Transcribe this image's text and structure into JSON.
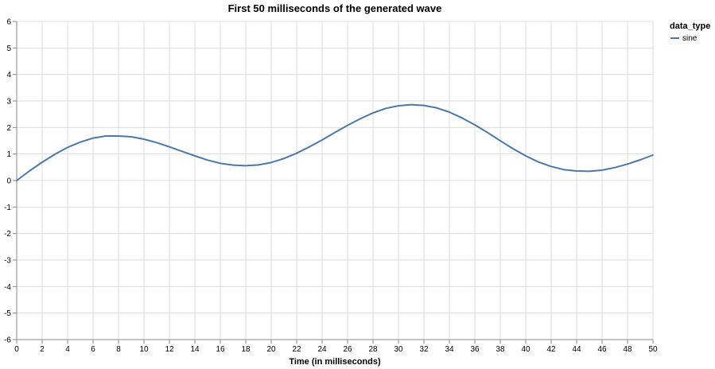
{
  "chart_data": {
    "type": "line",
    "title": "First 50 milliseconds of the generated wave",
    "xlabel": "Time (in milliseconds)",
    "ylabel": "",
    "xlim": [
      0,
      50
    ],
    "ylim": [
      -6,
      6
    ],
    "x_ticks": [
      0,
      2,
      4,
      6,
      8,
      10,
      12,
      14,
      16,
      18,
      20,
      22,
      24,
      26,
      28,
      30,
      32,
      34,
      36,
      38,
      40,
      42,
      44,
      46,
      48,
      50
    ],
    "y_ticks": [
      6,
      5,
      4,
      3,
      2,
      1,
      0,
      -1,
      -2,
      -3,
      -4,
      -5,
      -6
    ],
    "grid": true,
    "legend": {
      "title": "data_type",
      "position": "top-right",
      "entries": [
        "sine"
      ]
    },
    "series": [
      {
        "name": "sine",
        "color": "#4c78a8",
        "x": [
          0,
          1,
          2,
          3,
          4,
          5,
          6,
          7,
          8,
          9,
          10,
          11,
          12,
          13,
          14,
          15,
          16,
          17,
          18,
          19,
          20,
          21,
          22,
          23,
          24,
          25,
          26,
          27,
          28,
          29,
          30,
          31,
          32,
          33,
          34,
          35,
          36,
          37,
          38,
          39,
          40,
          41,
          42,
          43,
          44,
          45,
          46,
          47,
          48,
          49,
          50
        ],
        "values": [
          0.0,
          0.36,
          0.69,
          0.99,
          1.25,
          1.45,
          1.6,
          1.68,
          1.68,
          1.65,
          1.56,
          1.43,
          1.27,
          1.1,
          0.93,
          0.77,
          0.65,
          0.58,
          0.56,
          0.59,
          0.68,
          0.83,
          1.03,
          1.27,
          1.53,
          1.81,
          2.08,
          2.33,
          2.55,
          2.72,
          2.82,
          2.86,
          2.83,
          2.74,
          2.58,
          2.36,
          2.1,
          1.81,
          1.5,
          1.2,
          0.93,
          0.7,
          0.53,
          0.41,
          0.36,
          0.35,
          0.39,
          0.49,
          0.62,
          0.78,
          0.96
        ]
      }
    ]
  }
}
